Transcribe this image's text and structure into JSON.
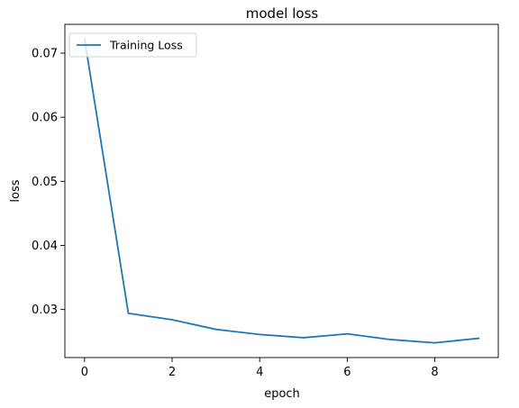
{
  "chart_data": {
    "type": "line",
    "title": "model loss",
    "xlabel": "epoch",
    "ylabel": "loss",
    "x": [
      0,
      1,
      2,
      3,
      4,
      5,
      6,
      7,
      8,
      9
    ],
    "series": [
      {
        "name": "Training Loss",
        "color": "#1f77b4",
        "values": [
          0.0722,
          0.0294,
          0.0284,
          0.0269,
          0.0261,
          0.0256,
          0.0262,
          0.0253,
          0.0248,
          0.0255
        ]
      }
    ],
    "xlim": [
      -0.45,
      9.45
    ],
    "ylim": [
      0.0225,
      0.0745
    ],
    "xticks": [
      0,
      2,
      4,
      6,
      8
    ],
    "yticks": [
      0.03,
      0.04,
      0.05,
      0.06,
      0.07
    ],
    "xtick_labels": [
      "0",
      "2",
      "4",
      "6",
      "8"
    ],
    "ytick_labels": [
      "0.03",
      "0.04",
      "0.05",
      "0.06",
      "0.07"
    ],
    "grid": false,
    "legend_position": "top-left"
  }
}
